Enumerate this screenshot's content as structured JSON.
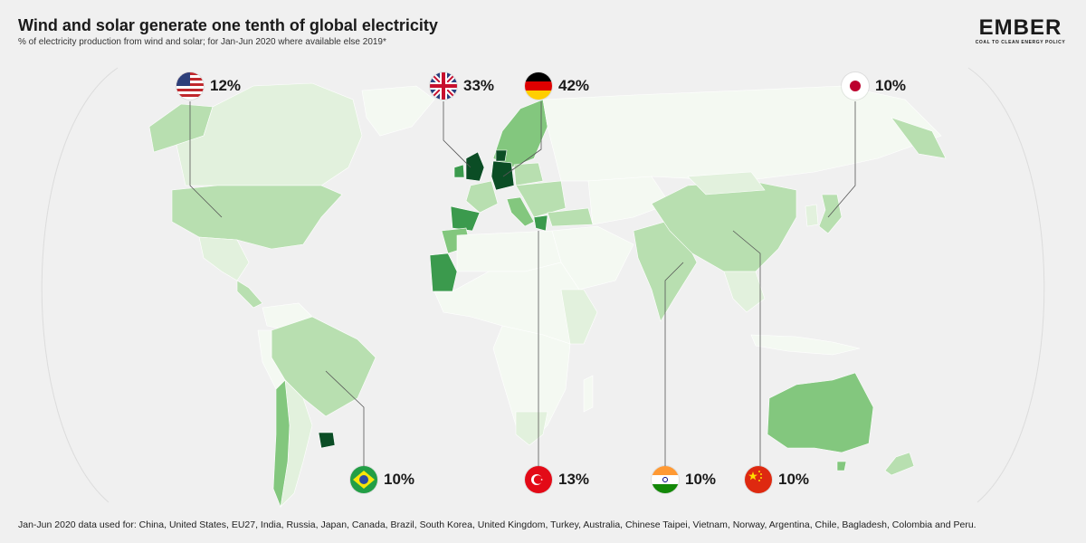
{
  "title": "Wind and solar generate one tenth of global electricity",
  "subtitle": "% of electricity production from wind and solar; for Jan-Jun 2020 where available else 2019*",
  "logo": {
    "word": "EMBER",
    "tagline": "COAL TO CLEAN ENERGY POLICY"
  },
  "footnote": "Jan-Jun 2020 data used for: China, United States, EU27, India, Russia, Japan, Canada, Brazil, South Korea, United Kingdom, Turkey, Australia, Chinese Taipei, Vietnam, Norway, Argentina, Chile, Bagladesh, Colombia and Peru.",
  "callouts": [
    {
      "country": "United States",
      "flag": "us-flag-icon",
      "value": "12%"
    },
    {
      "country": "United Kingdom",
      "flag": "uk-flag-icon",
      "value": "33%"
    },
    {
      "country": "Germany",
      "flag": "germany-flag-icon",
      "value": "42%"
    },
    {
      "country": "Japan",
      "flag": "japan-flag-icon",
      "value": "10%"
    },
    {
      "country": "Brazil",
      "flag": "brazil-flag-icon",
      "value": "10%"
    },
    {
      "country": "Turkey",
      "flag": "turkey-flag-icon",
      "value": "13%"
    },
    {
      "country": "India",
      "flag": "india-flag-icon",
      "value": "10%"
    },
    {
      "country": "China",
      "flag": "china-flag-icon",
      "value": "10%"
    }
  ],
  "colors": {
    "background": "#f0f0f0",
    "ocean_globe": "#ececec",
    "lowest": "#f4f9f2",
    "low": "#e2f1dd",
    "mid": "#b8dfb0",
    "medium": "#83c77e",
    "high": "#3b9a4d",
    "highest": "#0b4d25",
    "brand_green": "#38b44a"
  }
}
